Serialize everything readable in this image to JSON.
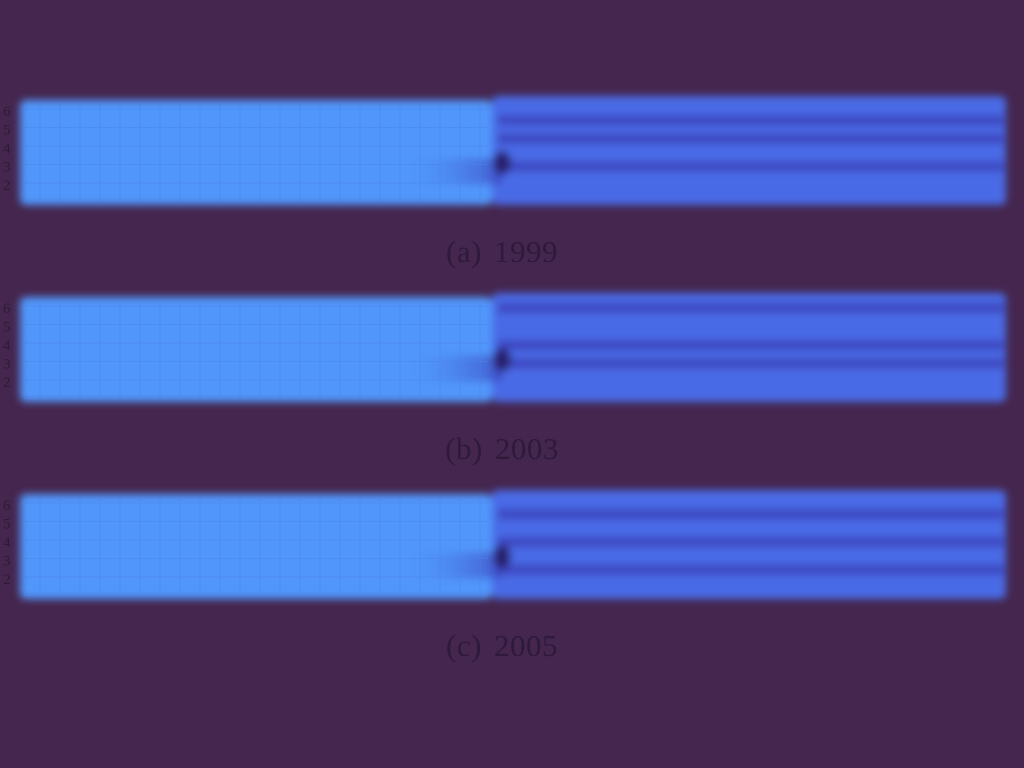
{
  "colors": {
    "background": "#45264e",
    "left_region": "#5196fb",
    "right_region": "#4a6ae6",
    "dark_band": "#3a3fb8",
    "darkest": "#2a2470",
    "label_text": "#2e1a3a",
    "grid": "#4a84e8"
  },
  "chart_data": [
    {
      "type": "heatmap",
      "tag": "(a)",
      "year": "1999",
      "yticks": [
        "6",
        "5",
        "4",
        "3",
        "2"
      ],
      "dark_bands": [
        5.5,
        4.5,
        3.0
      ],
      "grid": true
    },
    {
      "type": "heatmap",
      "tag": "(b)",
      "year": "2003",
      "yticks": [
        "6",
        "5",
        "4",
        "3",
        "2"
      ],
      "dark_bands": [
        6.0,
        4.0,
        3.0
      ],
      "grid": true
    },
    {
      "type": "heatmap",
      "tag": "(c)",
      "year": "2005",
      "yticks": [
        "6",
        "5",
        "4",
        "3",
        "2"
      ],
      "dark_bands": [
        5.5,
        4.0,
        2.5
      ],
      "grid": true
    }
  ]
}
